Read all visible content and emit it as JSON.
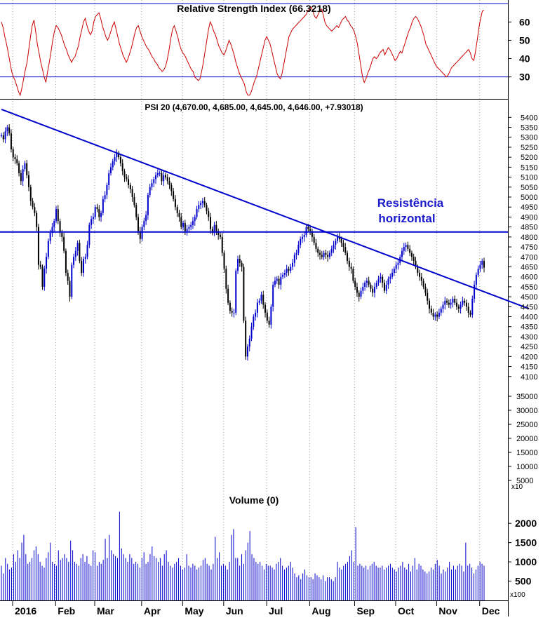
{
  "colors": {
    "rsi_line": "#cc0000",
    "reference_line": "#0000cc",
    "price_up": "#0000cc",
    "price_down": "#000000",
    "volume_bar": "#0000cc",
    "grid": "#999999",
    "text": "#000000"
  },
  "chart_data": [
    {
      "type": "line",
      "title": "Relative Strength Index (66.3218)",
      "ylim": [
        18,
        72
      ],
      "y_ticks": [
        "60",
        "50",
        "40",
        "30"
      ],
      "y_tick_values": [
        60,
        50,
        40,
        30
      ],
      "reference_lines": [
        70,
        30
      ],
      "grid": "vertical dotted at month starts",
      "series": [
        {
          "values": [
            60,
            57,
            52,
            48,
            43,
            38,
            33,
            30,
            28,
            25,
            22,
            20,
            24,
            29,
            34,
            38,
            45,
            52,
            58,
            61,
            55,
            48,
            43,
            38,
            34,
            30,
            27,
            33,
            38,
            44,
            50,
            55,
            58,
            57,
            55,
            53,
            50,
            47,
            45,
            42,
            40,
            38,
            40,
            41,
            44,
            47,
            52,
            56,
            60,
            62,
            58,
            55,
            53,
            55,
            60,
            63,
            64,
            65,
            62,
            58,
            55,
            52,
            50,
            52,
            55,
            58,
            60,
            56,
            52,
            48,
            45,
            42,
            40,
            38,
            40,
            43,
            46,
            50,
            54,
            57,
            58,
            55,
            52,
            50,
            48,
            46,
            45,
            43,
            41,
            40,
            38,
            37,
            35,
            34,
            33,
            34,
            36,
            40,
            45,
            51,
            56,
            58,
            55,
            52,
            48,
            45,
            43,
            42,
            40,
            38,
            36,
            34,
            33,
            30,
            29,
            28,
            29,
            33,
            38,
            44,
            50,
            56,
            60,
            58,
            55,
            53,
            50,
            47,
            45,
            43,
            42,
            44,
            47,
            50,
            48,
            45,
            42,
            38,
            35,
            32,
            30,
            28,
            26,
            22,
            20,
            20,
            22,
            25,
            28,
            30,
            34,
            38,
            42,
            46,
            50,
            52,
            50,
            48,
            44,
            40,
            36,
            32,
            30,
            29,
            32,
            37,
            42,
            47,
            52,
            54,
            56,
            57,
            58,
            59,
            60,
            61,
            62,
            63,
            64,
            66,
            67,
            68,
            66,
            63,
            62,
            64,
            66,
            67,
            64,
            60,
            58,
            57,
            56,
            55,
            56,
            57,
            58,
            57,
            59,
            61,
            62,
            63,
            61,
            60,
            58,
            57,
            55,
            52,
            48,
            42,
            36,
            30,
            27,
            29,
            32,
            34,
            37,
            40,
            41,
            40,
            41,
            43,
            44,
            45,
            42,
            44,
            46,
            45,
            43,
            41,
            39,
            40,
            42,
            44,
            43,
            46,
            49,
            52,
            55,
            57,
            60,
            62,
            63,
            62,
            60,
            58,
            55,
            52,
            48,
            46,
            44,
            42,
            40,
            38,
            36,
            35,
            34,
            33,
            32,
            31,
            30,
            31,
            33,
            35,
            36,
            37,
            38,
            39,
            40,
            41,
            42,
            43,
            44,
            45,
            43,
            40,
            39,
            44,
            50,
            57,
            62,
            66,
            66.3
          ]
        }
      ]
    },
    {
      "type": "candlestick",
      "title": "PSI 20 (4,670.00, 4,685.00, 4,645.00, 4,646.00, +7.93018)",
      "ylim": [
        4050,
        5475
      ],
      "y_ticks": [
        "5400",
        "5350",
        "5300",
        "5250",
        "5200",
        "5150",
        "5100",
        "5050",
        "5000",
        "4950",
        "4900",
        "4850",
        "4800",
        "4750",
        "4700",
        "4650",
        "4600",
        "4550",
        "4500",
        "4450",
        "4400",
        "4350",
        "4300",
        "4250",
        "4200",
        "4150",
        "4100"
      ],
      "y_tick_values": [
        5400,
        5350,
        5300,
        5250,
        5200,
        5150,
        5100,
        5050,
        5000,
        4950,
        4900,
        4850,
        4800,
        4750,
        4700,
        4650,
        4600,
        4550,
        4500,
        4450,
        4400,
        4350,
        4300,
        4250,
        4200,
        4150,
        4100
      ],
      "annotation_lines": {
        "horizontal_resistance": 4825,
        "descending_trendline": [
          [
            0,
            5440
          ],
          [
            270,
            4440
          ]
        ]
      },
      "annotation_text": [
        "Resistência",
        "horizontal"
      ],
      "x_ticks": [
        "2016",
        "Feb",
        "Mar",
        "Apr",
        "May",
        "Jun",
        "Jul",
        "Aug",
        "Sep",
        "Oct",
        "Nov",
        "Dec"
      ],
      "x_tick_index": [
        0,
        22,
        42,
        66,
        87,
        108,
        130,
        152,
        175,
        196,
        217,
        239
      ],
      "close": [
        5310,
        5290,
        5330,
        5350,
        5320,
        5240,
        5200,
        5190,
        5170,
        5120,
        5080,
        5140,
        5170,
        5110,
        5050,
        4980,
        4950,
        4920,
        4850,
        4660,
        4650,
        4550,
        4640,
        4700,
        4780,
        4820,
        4850,
        4880,
        4940,
        4880,
        4820,
        4800,
        4730,
        4620,
        4580,
        4500,
        4660,
        4700,
        4730,
        4770,
        4680,
        4620,
        4690,
        4700,
        4760,
        4860,
        4890,
        4900,
        4950,
        4940,
        4900,
        4920,
        4990,
        5010,
        5060,
        5120,
        5150,
        5180,
        5200,
        5220,
        5200,
        5170,
        5130,
        5100,
        5090,
        5060,
        5040,
        5000,
        4960,
        4900,
        4830,
        4790,
        4850,
        4880,
        4910,
        5010,
        5050,
        5070,
        5090,
        5110,
        5120,
        5120,
        5080,
        5110,
        5100,
        5080,
        5060,
        5030,
        4990,
        4950,
        4920,
        4900,
        4850,
        4870,
        4830,
        4840,
        4850,
        4860,
        4880,
        4900,
        4940,
        4960,
        4970,
        4980,
        4960,
        4930,
        4900,
        4840,
        4820,
        4860,
        4830,
        4810,
        4800,
        4720,
        4640,
        4540,
        4470,
        4430,
        4420,
        4420,
        4630,
        4690,
        4670,
        4650,
        4380,
        4200,
        4250,
        4290,
        4350,
        4400,
        4420,
        4470,
        4480,
        4510,
        4460,
        4420,
        4380,
        4360,
        4450,
        4560,
        4580,
        4590,
        4560,
        4600,
        4610,
        4620,
        4640,
        4630,
        4650,
        4670,
        4710,
        4720,
        4760,
        4790,
        4800,
        4810,
        4850,
        4840,
        4830,
        4800,
        4770,
        4740,
        4720,
        4710,
        4700,
        4720,
        4710,
        4700,
        4720,
        4740,
        4760,
        4780,
        4800,
        4790,
        4770,
        4750,
        4720,
        4680,
        4650,
        4640,
        4580,
        4550,
        4520,
        4500,
        4530,
        4550,
        4570,
        4580,
        4560,
        4540,
        4520,
        4550,
        4570,
        4590,
        4600,
        4570,
        4530,
        4560,
        4590,
        4600,
        4620,
        4640,
        4660,
        4670,
        4700,
        4730,
        4750,
        4760,
        4740,
        4720,
        4700,
        4680,
        4650,
        4620,
        4600,
        4580,
        4550,
        4520,
        4480,
        4440,
        4420,
        4400,
        4410,
        4400,
        4420,
        4440,
        4460,
        4480,
        4470,
        4460,
        4470,
        4490,
        4470,
        4450,
        4440,
        4460,
        4480,
        4470,
        4450,
        4420,
        4410,
        4490,
        4560,
        4610,
        4640,
        4660,
        4680,
        4646
      ]
    },
    {
      "type": "bar",
      "title": "Volume (0)",
      "ylim": [
        0,
        2750
      ],
      "y_ticks": [
        "2000",
        "1500",
        "1000",
        "500"
      ],
      "y_tick_values": [
        2000,
        1500,
        1000,
        500
      ],
      "y_multiplier_label": "x100",
      "values": [
        900,
        700,
        1100,
        950,
        800,
        850,
        1200,
        1000,
        1300,
        1100,
        1500,
        1700,
        1200,
        950,
        1000,
        1100,
        1300,
        1400,
        1200,
        1000,
        900,
        850,
        1100,
        1250,
        1500,
        1000,
        950,
        900,
        1300,
        1050,
        1100,
        1200,
        1100,
        1000,
        1550,
        1300,
        1000,
        950,
        900,
        1100,
        1200,
        1000,
        1150,
        950,
        900,
        1300,
        1250,
        900,
        1000,
        950,
        1050,
        1600,
        1100,
        1700,
        1300,
        1200,
        1150,
        1100,
        2300,
        1350,
        1200,
        1100,
        1000,
        1200,
        1100,
        950,
        1000,
        950,
        850,
        1100,
        1250,
        950,
        1000,
        1200,
        1400,
        1150,
        1100,
        1000,
        1100,
        900,
        1200,
        1300,
        1000,
        900,
        850,
        950,
        1000,
        1100,
        900,
        800,
        850,
        1200,
        900,
        850,
        950,
        900,
        800,
        850,
        900,
        1050,
        1100,
        950,
        900,
        800,
        950,
        1650,
        1100,
        1250,
        900,
        950,
        900,
        800,
        1000,
        1700,
        1850,
        1100,
        1100,
        900,
        1200,
        950,
        1300,
        1500,
        1800,
        1200,
        1100,
        1000,
        950,
        1000,
        900,
        800,
        950,
        900,
        900,
        850,
        800,
        950,
        1000,
        1100,
        900,
        800,
        850,
        900,
        1000,
        850,
        700,
        600,
        650,
        550,
        700,
        800,
        650,
        600,
        600,
        550,
        700,
        650,
        600,
        550,
        650,
        500,
        600,
        600,
        550,
        500,
        600,
        1000,
        850,
        800,
        900,
        950,
        1000,
        1150,
        1300,
        1000,
        1900,
        900,
        950,
        900,
        850,
        900,
        800,
        900,
        950,
        1000,
        900,
        850,
        850,
        900,
        800,
        850,
        900,
        950,
        850,
        800,
        750,
        850,
        900,
        1000,
        850,
        800,
        950,
        750,
        900,
        1100,
        800,
        950,
        900,
        800,
        750,
        700,
        750,
        850,
        800,
        950,
        1050,
        900,
        700,
        800,
        750,
        850,
        1000,
        800,
        900,
        800,
        900,
        950,
        900,
        750,
        1500,
        900,
        950,
        850,
        700,
        800,
        900,
        1000,
        950,
        900
      ]
    },
    {
      "type": "line",
      "ylim": [
        0,
        40000
      ],
      "y_ticks": [
        "35000",
        "30000",
        "25000",
        "20000",
        "15000",
        "10000",
        "5000"
      ],
      "y_tick_values": [
        35000,
        30000,
        25000,
        20000,
        15000,
        10000,
        5000
      ],
      "y_multiplier_label": "x10",
      "series": []
    }
  ]
}
